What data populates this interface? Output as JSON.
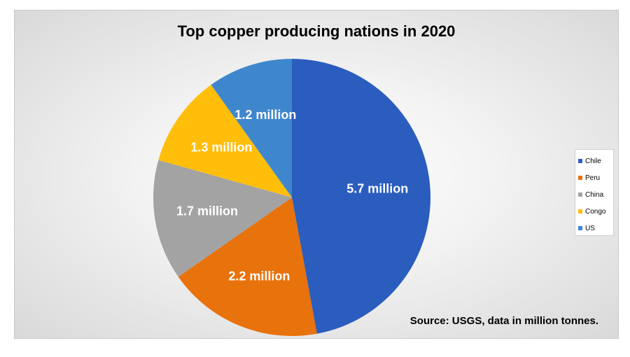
{
  "chart_data": {
    "type": "pie",
    "title": "Top copper producing nations in 2020",
    "categories": [
      "Chile",
      "Peru",
      "China",
      "Congo",
      "US"
    ],
    "values": [
      5.7,
      2.2,
      1.7,
      1.3,
      1.2
    ],
    "data_labels": [
      "5.7 million",
      "2.2 million",
      "1.7 million",
      "1.3 million",
      "1.2 million"
    ],
    "colors": [
      "#2B5DBE",
      "#E8720C",
      "#A3A3A3",
      "#FFBE0A",
      "#3F87CD"
    ],
    "legend_position": "right",
    "source": "Source: USGS, data in million tonnes."
  }
}
